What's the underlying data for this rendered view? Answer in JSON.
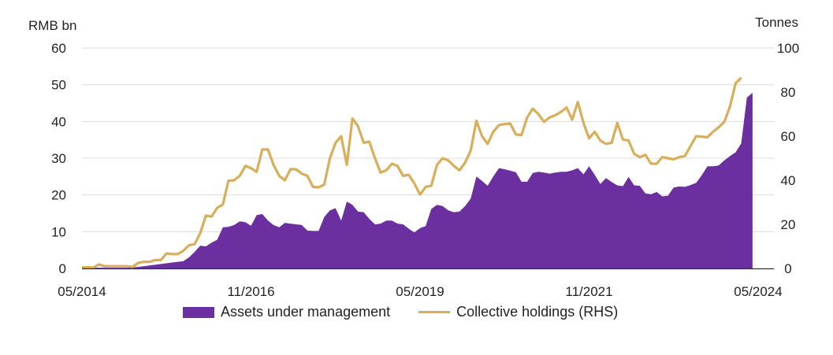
{
  "chart_data": {
    "type": "area",
    "title": "",
    "left_axis_label": "RMB bn",
    "right_axis_label": "Tonnes",
    "ylim_left": [
      0,
      60
    ],
    "ylim_right": [
      0,
      100
    ],
    "yticks_left": [
      "0",
      "10",
      "20",
      "30",
      "40",
      "50",
      "60"
    ],
    "yticks_right": [
      "0",
      "20",
      "40",
      "60",
      "80",
      "100"
    ],
    "x_tick_labels": [
      "05/2014",
      "11/2016",
      "05/2019",
      "11/2021",
      "05/2024"
    ],
    "x_range_months": [
      0,
      120
    ],
    "grid": true,
    "colors": {
      "aum": "#6b2fa0",
      "holdings": "#d8ae5a",
      "grid": "#dcdcdc",
      "axis": "#333333"
    },
    "series": [
      {
        "name": "Assets under management",
        "axis": "left",
        "style": "area",
        "points": [
          [
            0,
            0.2
          ],
          [
            4,
            0.2
          ],
          [
            8,
            0.2
          ],
          [
            10,
            0.4
          ],
          [
            12,
            0.8
          ],
          [
            14,
            1.2
          ],
          [
            16,
            1.6
          ],
          [
            18,
            2.0
          ],
          [
            19,
            3.0
          ],
          [
            20,
            4.5
          ],
          [
            21,
            6.2
          ],
          [
            22,
            6.0
          ],
          [
            23,
            7.0
          ],
          [
            24,
            7.8
          ],
          [
            25,
            11.2
          ],
          [
            26,
            11.3
          ],
          [
            27,
            11.8
          ],
          [
            28,
            12.8
          ],
          [
            29,
            12.6
          ],
          [
            30,
            11.6
          ],
          [
            31,
            14.5
          ],
          [
            32,
            14.8
          ],
          [
            33,
            13.0
          ],
          [
            34,
            11.8
          ],
          [
            35,
            11.2
          ],
          [
            36,
            12.4
          ],
          [
            37,
            12.2
          ],
          [
            38,
            12.0
          ],
          [
            39,
            11.8
          ],
          [
            40,
            10.3
          ],
          [
            41,
            10.2
          ],
          [
            42,
            10.2
          ],
          [
            43,
            14.0
          ],
          [
            44,
            15.8
          ],
          [
            45,
            16.4
          ],
          [
            46,
            13.0
          ],
          [
            47,
            18.2
          ],
          [
            48,
            17.3
          ],
          [
            49,
            15.5
          ],
          [
            50,
            15.3
          ],
          [
            51,
            13.5
          ],
          [
            52,
            12.0
          ],
          [
            53,
            12.2
          ],
          [
            54,
            13.0
          ],
          [
            55,
            13.0
          ],
          [
            56,
            12.2
          ],
          [
            57,
            12.0
          ],
          [
            58,
            10.8
          ],
          [
            59,
            9.8
          ],
          [
            60,
            11.0
          ],
          [
            61,
            11.5
          ],
          [
            62,
            16.2
          ],
          [
            63,
            17.3
          ],
          [
            64,
            17.0
          ],
          [
            65,
            15.8
          ],
          [
            66,
            15.3
          ],
          [
            67,
            15.5
          ],
          [
            68,
            17.0
          ],
          [
            69,
            19.0
          ],
          [
            70,
            25.0
          ],
          [
            71,
            23.8
          ],
          [
            72,
            22.5
          ],
          [
            73,
            25.0
          ],
          [
            74,
            27.3
          ],
          [
            75,
            27.0
          ],
          [
            76,
            26.6
          ],
          [
            77,
            26.2
          ],
          [
            78,
            23.6
          ],
          [
            79,
            23.6
          ],
          [
            80,
            26.0
          ],
          [
            81,
            26.3
          ],
          [
            82,
            26.1
          ],
          [
            83,
            25.8
          ],
          [
            84,
            26.1
          ],
          [
            85,
            26.3
          ],
          [
            86,
            26.3
          ],
          [
            87,
            26.7
          ],
          [
            88,
            27.3
          ],
          [
            89,
            25.6
          ],
          [
            90,
            27.8
          ],
          [
            91,
            25.5
          ],
          [
            92,
            23.0
          ],
          [
            93,
            24.6
          ],
          [
            94,
            23.5
          ],
          [
            95,
            22.6
          ],
          [
            96,
            22.4
          ],
          [
            97,
            24.9
          ],
          [
            98,
            22.6
          ],
          [
            99,
            22.5
          ],
          [
            100,
            20.4
          ],
          [
            101,
            20.2
          ],
          [
            102,
            20.8
          ],
          [
            103,
            19.6
          ],
          [
            104,
            19.8
          ],
          [
            105,
            22.0
          ],
          [
            106,
            22.3
          ],
          [
            107,
            22.2
          ],
          [
            108,
            22.7
          ],
          [
            109,
            23.3
          ],
          [
            110,
            25.4
          ],
          [
            111,
            27.8
          ],
          [
            112,
            27.8
          ],
          [
            113,
            28.0
          ],
          [
            114,
            29.4
          ],
          [
            115,
            30.6
          ],
          [
            116,
            31.6
          ],
          [
            117,
            34.0
          ],
          [
            118,
            46.5
          ],
          [
            119,
            47.8
          ]
        ]
      },
      {
        "name": "Collective holdings (RHS)",
        "axis": "right",
        "style": "line",
        "points": [
          [
            0,
            0.5
          ],
          [
            1,
            0.5
          ],
          [
            2,
            0.4
          ],
          [
            3,
            1.8
          ],
          [
            4,
            1.0
          ],
          [
            6,
            1.0
          ],
          [
            8,
            1.0
          ],
          [
            9,
            0.7
          ],
          [
            10,
            2.5
          ],
          [
            11,
            3.0
          ],
          [
            12,
            3.0
          ],
          [
            13,
            3.8
          ],
          [
            14,
            3.8
          ],
          [
            15,
            6.8
          ],
          [
            16,
            6.5
          ],
          [
            17,
            6.5
          ],
          [
            18,
            8.0
          ],
          [
            19,
            10.5
          ],
          [
            20,
            11.0
          ],
          [
            21,
            16.0
          ],
          [
            22,
            24.0
          ],
          [
            23,
            23.5
          ],
          [
            24,
            27.5
          ],
          [
            25,
            29.0
          ],
          [
            26,
            39.8
          ],
          [
            27,
            40.0
          ],
          [
            28,
            42.0
          ],
          [
            29,
            46.5
          ],
          [
            30,
            45.5
          ],
          [
            31,
            43.8
          ],
          [
            32,
            54.0
          ],
          [
            33,
            54.0
          ],
          [
            34,
            47.0
          ],
          [
            35,
            42.0
          ],
          [
            36,
            40.0
          ],
          [
            37,
            45.0
          ],
          [
            38,
            45.0
          ],
          [
            39,
            43.0
          ],
          [
            40,
            42.0
          ],
          [
            41,
            37.0
          ],
          [
            42,
            36.8
          ],
          [
            43,
            38.0
          ],
          [
            44,
            50.0
          ],
          [
            45,
            57.0
          ],
          [
            46,
            60.0
          ],
          [
            47,
            47.0
          ],
          [
            48,
            68.0
          ],
          [
            49,
            64.5
          ],
          [
            50,
            57.0
          ],
          [
            51,
            57.5
          ],
          [
            52,
            50.0
          ],
          [
            53,
            43.5
          ],
          [
            54,
            44.5
          ],
          [
            55,
            47.5
          ],
          [
            56,
            46.5
          ],
          [
            57,
            42.0
          ],
          [
            58,
            42.5
          ],
          [
            59,
            38.5
          ],
          [
            60,
            33.5
          ],
          [
            61,
            37.0
          ],
          [
            62,
            37.5
          ],
          [
            63,
            47.0
          ],
          [
            64,
            50.0
          ],
          [
            65,
            49.0
          ],
          [
            66,
            46.5
          ],
          [
            67,
            44.5
          ],
          [
            68,
            48.0
          ],
          [
            69,
            53.5
          ],
          [
            70,
            67.0
          ],
          [
            71,
            60.0
          ],
          [
            72,
            56.5
          ],
          [
            73,
            62.0
          ],
          [
            74,
            65.0
          ],
          [
            75,
            65.5
          ],
          [
            76,
            65.8
          ],
          [
            77,
            60.8
          ],
          [
            78,
            60.5
          ],
          [
            79,
            68.5
          ],
          [
            80,
            72.5
          ],
          [
            81,
            70.0
          ],
          [
            82,
            66.5
          ],
          [
            83,
            68.5
          ],
          [
            84,
            69.5
          ],
          [
            85,
            71.0
          ],
          [
            86,
            73.0
          ],
          [
            87,
            67.5
          ],
          [
            88,
            75.5
          ],
          [
            89,
            66.0
          ],
          [
            90,
            59.0
          ],
          [
            91,
            62.0
          ],
          [
            92,
            58.0
          ],
          [
            93,
            56.5
          ],
          [
            94,
            57.0
          ],
          [
            95,
            66.0
          ],
          [
            96,
            58.5
          ],
          [
            97,
            58.0
          ],
          [
            98,
            52.0
          ],
          [
            99,
            50.5
          ],
          [
            100,
            51.5
          ],
          [
            101,
            47.5
          ],
          [
            102,
            47.5
          ],
          [
            103,
            50.5
          ],
          [
            104,
            50.0
          ],
          [
            105,
            49.5
          ],
          [
            106,
            50.5
          ],
          [
            107,
            51.0
          ],
          [
            108,
            55.5
          ],
          [
            109,
            60.0
          ],
          [
            110,
            59.8
          ],
          [
            111,
            59.5
          ],
          [
            112,
            62.0
          ],
          [
            113,
            64.0
          ],
          [
            114,
            66.5
          ],
          [
            115,
            73.5
          ],
          [
            116,
            84.0
          ],
          [
            117,
            86.5
          ]
        ]
      }
    ]
  },
  "legend": {
    "aum_label": "Assets under management",
    "holdings_label": "Collective holdings (RHS)"
  }
}
